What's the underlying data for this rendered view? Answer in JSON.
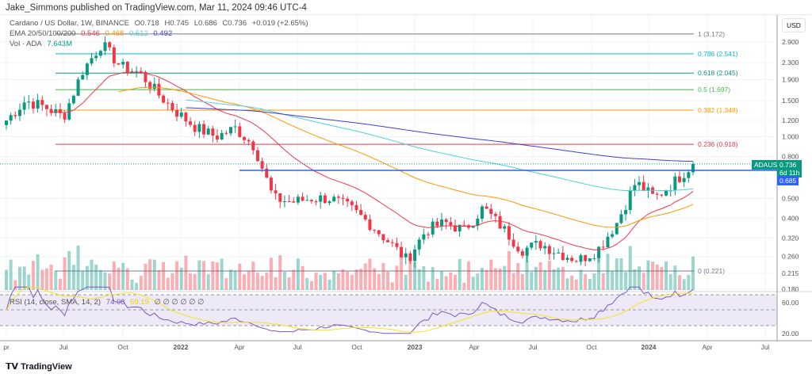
{
  "header": {
    "published": "Jake_Simmons published on TradingView.com, Mar 11, 2024 09:46 UTC-4"
  },
  "legend": {
    "symbol": "Cardano / US Dollar, 1W, BINANCE",
    "open": "O0.718",
    "high": "H0.745",
    "low": "L0.686",
    "close": "C0.736",
    "change": "+0.019 (+2.65%)",
    "ema_label": "EMA 20/50/100/200",
    "ema20": "0.546",
    "ema50": "0.468",
    "ema100": "0.512",
    "ema200": "0.492",
    "vol_label": "Vol · ADA",
    "vol": "7.643M",
    "rsi_label": "RSI (14, close, SMA, 14, 2)",
    "rsi": "74.08",
    "rsi_sma": "69.19",
    "rsi_na": "∅ ∅ ∅ ∅ ∅ ∅"
  },
  "price_axis": {
    "currency": "USD",
    "ticks": [
      "2.900",
      "2.300",
      "1.900",
      "1.500",
      "1.200",
      "1.000",
      "0.800",
      "0.500",
      "0.400",
      "0.320",
      "0.260",
      "0.215",
      "0.180"
    ],
    "rsi_ticks": [
      "60.00",
      "20.00"
    ]
  },
  "price_tag": {
    "symbol": "ADAUSD",
    "price": "0.736",
    "countdown": "6d 11h",
    "line_price": "0.685"
  },
  "fib": [
    {
      "label": "1 (3.172)",
      "value": 3.172,
      "color": "#787b86"
    },
    {
      "label": "0.786 (2.541)",
      "value": 2.541,
      "color": "#00bcd4"
    },
    {
      "label": "0.618 (2.045)",
      "value": 2.045,
      "color": "#089981"
    },
    {
      "label": "0.5 (1.697)",
      "value": 1.697,
      "color": "#4caf50"
    },
    {
      "label": "0.382 (1.348)",
      "value": 1.348,
      "color": "#ff9800"
    },
    {
      "label": "0.236 (0.918)",
      "value": 0.918,
      "color": "#f23645"
    },
    {
      "label": "0 (0.221)",
      "value": 0.221,
      "color": "#787b86"
    }
  ],
  "time_axis": [
    "pr",
    "Jul",
    "Oct",
    "2022",
    "Apr",
    "Jul",
    "Oct",
    "2023",
    "Apr",
    "Jul",
    "Oct",
    "2024",
    "Apr",
    "Jul"
  ],
  "colors": {
    "up": "#089981",
    "down": "#f23645",
    "ema20": "#f23645",
    "ema50": "#ff9800",
    "ema100": "#4dd0e1",
    "ema200": "#3f3fd8",
    "rsi": "#7e57c2",
    "rsi_sma": "#f7e21b",
    "hline": "#2962ff"
  },
  "chart_data": {
    "type": "candlestick",
    "scale": "log",
    "monthly_close": [
      1.2,
      1.5,
      1.4,
      1.25,
      2.1,
      2.85,
      2.2,
      2.05,
      1.6,
      1.3,
      1.1,
      1.0,
      1.1,
      0.9,
      0.5,
      0.48,
      0.5,
      0.5,
      0.45,
      0.38,
      0.31,
      0.25,
      0.35,
      0.38,
      0.35,
      0.45,
      0.36,
      0.28,
      0.3,
      0.27,
      0.25,
      0.28,
      0.38,
      0.6,
      0.5,
      0.6,
      0.736
    ]
  },
  "footer": {
    "brand": "TradingView"
  }
}
